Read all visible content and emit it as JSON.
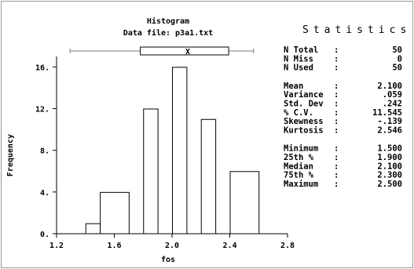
{
  "header": {
    "title": "Histogram",
    "subtitle": "Data file: p3a1.txt"
  },
  "chart_data": {
    "type": "bar",
    "title": "Histogram",
    "xlabel": "fos",
    "ylabel": "Frequency",
    "xlim": [
      1.2,
      2.8
    ],
    "ylim": [
      0,
      17
    ],
    "x_ticks": [
      "1.2",
      "1.6",
      "2.0",
      "2.4",
      "2.8"
    ],
    "y_ticks": [
      "0.",
      "4.",
      "8.",
      "12.",
      "16."
    ],
    "bins": [
      {
        "from": 1.4,
        "to": 1.5,
        "value": 1
      },
      {
        "from": 1.5,
        "to": 1.7,
        "value": 4
      },
      {
        "from": 1.8,
        "to": 1.9,
        "value": 12
      },
      {
        "from": 2.0,
        "to": 2.1,
        "value": 16
      },
      {
        "from": 2.2,
        "to": 2.3,
        "value": 11
      },
      {
        "from": 2.4,
        "to": 2.6,
        "value": 6
      }
    ],
    "boxplot": {
      "min": 1.5,
      "q1": 1.9,
      "median": 2.1,
      "q3": 2.3,
      "max": 2.5,
      "marker": "X"
    }
  },
  "stats": {
    "heading": "Statistics",
    "groups": [
      [
        {
          "label": "N Total",
          "value": "50"
        },
        {
          "label": "N Miss",
          "value": "0"
        },
        {
          "label": "N Used",
          "value": "50"
        }
      ],
      [
        {
          "label": "Mean",
          "value": "2.100"
        },
        {
          "label": "Variance",
          "value": ".059"
        },
        {
          "label": "Std. Dev",
          "value": ".242"
        },
        {
          "label": "% C.V.",
          "value": "11.545"
        },
        {
          "label": "Skewness",
          "value": "-.139"
        },
        {
          "label": "Kurtosis",
          "value": "2.546"
        }
      ],
      [
        {
          "label": "Minimum",
          "value": "1.500"
        },
        {
          "label": "25th %",
          "value": "1.900"
        },
        {
          "label": "Median",
          "value": "2.100"
        },
        {
          "label": "75th %",
          "value": "2.300"
        },
        {
          "label": "Maximum",
          "value": "2.500"
        }
      ]
    ]
  },
  "colors": {
    "background": "#ffffff",
    "frame": "#9a9a9a",
    "bar_stroke": "#000000",
    "box_stroke": "#7a7a7a"
  }
}
